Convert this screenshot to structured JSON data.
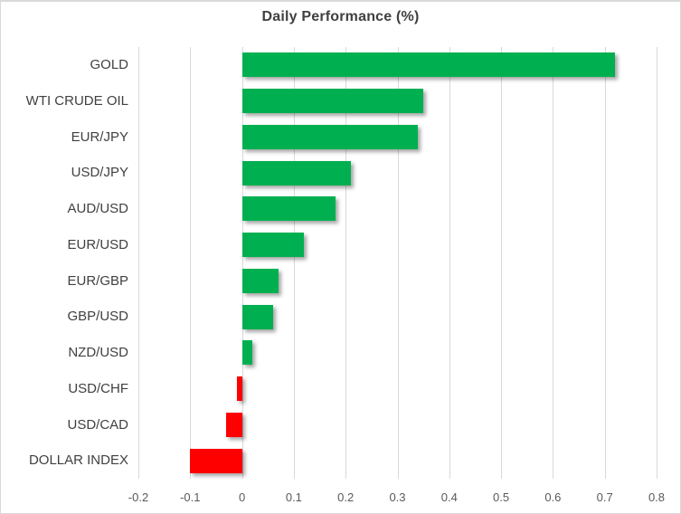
{
  "chart_data": {
    "type": "bar",
    "orientation": "horizontal",
    "title": "Daily Performance (%)",
    "categories": [
      "GOLD",
      "WTI CRUDE OIL",
      "EUR/JPY",
      "USD/JPY",
      "AUD/USD",
      "EUR/USD",
      "EUR/GBP",
      "GBP/USD",
      "NZD/USD",
      "USD/CHF",
      "USD/CAD",
      "DOLLAR INDEX"
    ],
    "values": [
      0.72,
      0.35,
      0.34,
      0.21,
      0.18,
      0.12,
      0.07,
      0.06,
      0.02,
      -0.01,
      -0.03,
      -0.1
    ],
    "xlim": [
      -0.2,
      0.8
    ],
    "x_ticks": [
      -0.2,
      -0.1,
      0,
      0.1,
      0.2,
      0.3,
      0.4,
      0.5,
      0.6,
      0.7,
      0.8
    ],
    "x_tick_labels": [
      "-0.2",
      "-0.1",
      "0",
      "0.1",
      "0.2",
      "0.3",
      "0.4",
      "0.5",
      "0.6",
      "0.7",
      "0.8"
    ],
    "xlabel": "",
    "ylabel": "",
    "grid": "vertical-on",
    "legend": "none",
    "colors": {
      "positive_bar": "#00B050",
      "negative_bar": "#FF0000",
      "gridline": "#D9D9D9",
      "title_text": "#404040",
      "category_text": "#404040",
      "tick_text": "#595959",
      "chart_border": "#D9D9D9"
    }
  }
}
